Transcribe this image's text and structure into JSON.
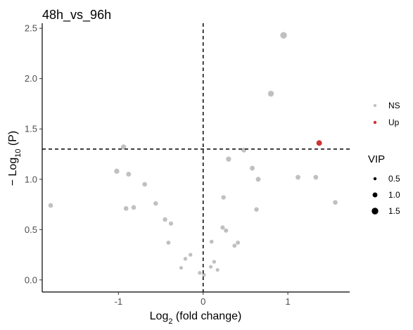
{
  "chart_data": {
    "type": "scatter",
    "title": "48h_vs_96h",
    "xlabel_base": "Log",
    "xlabel_sub": "2",
    "xlabel_rest": " (fold change)",
    "ylabel_prefix": "− Log",
    "ylabel_sub": "10",
    "ylabel_rest": " (P)",
    "xlim": [
      -1.9,
      1.73
    ],
    "ylim": [
      -0.12,
      2.55
    ],
    "x_ticks": [
      -1,
      0,
      1
    ],
    "x_tick_labels": [
      "-1",
      "0",
      "1"
    ],
    "y_ticks": [
      0.0,
      0.5,
      1.0,
      1.5,
      2.0,
      2.5
    ],
    "y_tick_labels": [
      "0.0",
      "0.5",
      "1.0",
      "1.5",
      "2.0",
      "2.5"
    ],
    "vline_x": 0,
    "hline_y": 1.3,
    "grid": false,
    "colors": {
      "NS": "#c0c0c0",
      "Up": "#cc3333"
    },
    "legend_groups": [
      {
        "key": "NS",
        "label": "NS"
      },
      {
        "key": "Up",
        "label": "Up"
      }
    ],
    "size_legend_title": "VIP",
    "size_legend": [
      {
        "vip": 0.5,
        "label": "0.5"
      },
      {
        "vip": 1.0,
        "label": "1.0"
      },
      {
        "vip": 1.5,
        "label": "1.5"
      }
    ],
    "points": [
      {
        "x": 0.95,
        "y": 2.43,
        "vip": 1.5,
        "group": "NS"
      },
      {
        "x": 0.8,
        "y": 1.85,
        "vip": 1.3,
        "group": "NS"
      },
      {
        "x": 1.37,
        "y": 1.36,
        "vip": 1.2,
        "group": "Up"
      },
      {
        "x": -0.94,
        "y": 1.32,
        "vip": 1.1,
        "group": "NS"
      },
      {
        "x": 0.48,
        "y": 1.29,
        "vip": 1.0,
        "group": "NS"
      },
      {
        "x": 0.3,
        "y": 1.2,
        "vip": 1.1,
        "group": "NS"
      },
      {
        "x": -1.02,
        "y": 1.08,
        "vip": 1.1,
        "group": "NS"
      },
      {
        "x": -0.88,
        "y": 1.05,
        "vip": 1.0,
        "group": "NS"
      },
      {
        "x": 0.58,
        "y": 1.11,
        "vip": 1.0,
        "group": "NS"
      },
      {
        "x": 0.65,
        "y": 1.0,
        "vip": 1.0,
        "group": "NS"
      },
      {
        "x": 1.12,
        "y": 1.02,
        "vip": 1.0,
        "group": "NS"
      },
      {
        "x": 1.33,
        "y": 1.02,
        "vip": 1.0,
        "group": "NS"
      },
      {
        "x": -0.69,
        "y": 0.95,
        "vip": 0.95,
        "group": "NS"
      },
      {
        "x": 0.24,
        "y": 0.82,
        "vip": 0.9,
        "group": "NS"
      },
      {
        "x": -1.8,
        "y": 0.74,
        "vip": 0.95,
        "group": "NS"
      },
      {
        "x": 1.56,
        "y": 0.77,
        "vip": 0.95,
        "group": "NS"
      },
      {
        "x": -0.56,
        "y": 0.76,
        "vip": 0.9,
        "group": "NS"
      },
      {
        "x": -0.91,
        "y": 0.71,
        "vip": 0.95,
        "group": "NS"
      },
      {
        "x": -0.82,
        "y": 0.72,
        "vip": 0.95,
        "group": "NS"
      },
      {
        "x": 0.63,
        "y": 0.7,
        "vip": 0.9,
        "group": "NS"
      },
      {
        "x": -0.45,
        "y": 0.6,
        "vip": 0.9,
        "group": "NS"
      },
      {
        "x": -0.38,
        "y": 0.56,
        "vip": 0.85,
        "group": "NS"
      },
      {
        "x": 0.23,
        "y": 0.52,
        "vip": 0.85,
        "group": "NS"
      },
      {
        "x": 0.27,
        "y": 0.49,
        "vip": 0.85,
        "group": "NS"
      },
      {
        "x": -0.41,
        "y": 0.37,
        "vip": 0.8,
        "group": "NS"
      },
      {
        "x": 0.1,
        "y": 0.38,
        "vip": 0.75,
        "group": "NS"
      },
      {
        "x": 0.41,
        "y": 0.37,
        "vip": 0.8,
        "group": "NS"
      },
      {
        "x": 0.37,
        "y": 0.34,
        "vip": 0.8,
        "group": "NS"
      },
      {
        "x": -0.15,
        "y": 0.25,
        "vip": 0.7,
        "group": "NS"
      },
      {
        "x": -0.21,
        "y": 0.21,
        "vip": 0.7,
        "group": "NS"
      },
      {
        "x": 0.13,
        "y": 0.18,
        "vip": 0.7,
        "group": "NS"
      },
      {
        "x": 0.09,
        "y": 0.13,
        "vip": 0.65,
        "group": "NS"
      },
      {
        "x": -0.26,
        "y": 0.12,
        "vip": 0.65,
        "group": "NS"
      },
      {
        "x": 0.17,
        "y": 0.1,
        "vip": 0.65,
        "group": "NS"
      },
      {
        "x": -0.04,
        "y": 0.07,
        "vip": 0.7,
        "group": "NS"
      },
      {
        "x": 0.01,
        "y": 0.05,
        "vip": 0.7,
        "group": "NS"
      }
    ]
  }
}
